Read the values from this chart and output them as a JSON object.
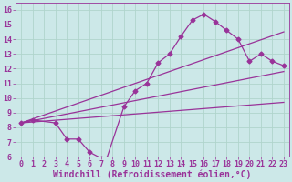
{
  "xlabel": "Windchill (Refroidissement éolien,°C)",
  "background_color": "#cce8e8",
  "grid_color": "#b0d4cc",
  "line_color": "#993399",
  "marker": "D",
  "xlim": [
    -0.5,
    23.5
  ],
  "ylim": [
    6,
    16.5
  ],
  "xticks": [
    0,
    1,
    2,
    3,
    4,
    5,
    6,
    7,
    8,
    9,
    10,
    11,
    12,
    13,
    14,
    15,
    16,
    17,
    18,
    19,
    20,
    21,
    22,
    23
  ],
  "yticks": [
    6,
    7,
    8,
    9,
    10,
    11,
    12,
    13,
    14,
    15,
    16
  ],
  "series1_x": [
    0,
    1,
    3,
    4,
    5,
    6,
    7,
    7.5,
    9,
    10,
    11,
    12,
    13,
    14,
    15,
    16,
    17,
    18,
    19,
    20,
    21,
    22,
    23
  ],
  "series1_y": [
    8.3,
    8.5,
    8.3,
    7.2,
    7.2,
    6.3,
    5.9,
    5.9,
    9.4,
    10.5,
    11.0,
    12.4,
    13.0,
    14.2,
    15.3,
    15.7,
    15.2,
    14.6,
    14.0,
    12.5,
    13.0,
    12.5,
    12.2
  ],
  "line1_x": [
    0,
    23
  ],
  "line1_y": [
    8.3,
    14.5
  ],
  "line2_x": [
    0,
    23
  ],
  "line2_y": [
    8.3,
    11.8
  ],
  "line3_x": [
    0,
    23
  ],
  "line3_y": [
    8.3,
    9.7
  ],
  "font_size": 7,
  "tick_font_size": 6,
  "lw": 0.9,
  "ms": 2.5
}
